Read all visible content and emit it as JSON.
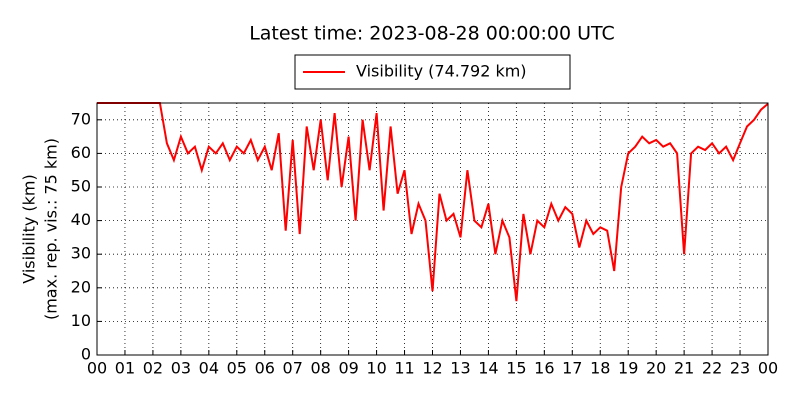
{
  "chart_data": {
    "type": "line",
    "title": "Latest time: 2023-08-28 00:00:00 UTC",
    "ylabel": [
      "Visibility (km)",
      "(max. rep. vis.: 75 km)"
    ],
    "x": [
      0,
      0.25,
      0.5,
      0.75,
      1,
      1.25,
      1.5,
      1.75,
      2,
      2.25,
      2.5,
      2.75,
      3,
      3.25,
      3.5,
      3.75,
      4,
      4.25,
      4.5,
      4.75,
      5,
      5.25,
      5.5,
      5.75,
      6,
      6.25,
      6.5,
      6.75,
      7,
      7.25,
      7.5,
      7.75,
      8,
      8.25,
      8.5,
      8.75,
      9,
      9.25,
      9.5,
      9.75,
      10,
      10.25,
      10.5,
      10.75,
      11,
      11.25,
      11.5,
      11.75,
      12,
      12.25,
      12.5,
      12.75,
      13,
      13.25,
      13.5,
      13.75,
      14,
      14.25,
      14.5,
      14.75,
      15,
      15.25,
      15.5,
      15.75,
      16,
      16.25,
      16.5,
      16.75,
      17,
      17.25,
      17.5,
      17.75,
      18,
      18.25,
      18.5,
      18.75,
      19,
      19.25,
      19.5,
      19.75,
      20,
      20.25,
      20.5,
      20.75,
      21,
      21.25,
      21.5,
      21.75,
      22,
      22.25,
      22.5,
      22.75,
      23,
      23.25,
      23.5,
      23.75,
      24
    ],
    "series": [
      {
        "name": "Visibility (74.792 km)",
        "color": "#ff0000",
        "values": [
          75,
          75,
          75,
          75,
          75,
          75,
          75,
          75,
          75,
          75,
          63,
          58,
          65,
          60,
          62,
          55,
          62,
          60,
          63,
          58,
          62,
          60,
          64,
          58,
          62,
          55,
          66,
          37,
          64,
          36,
          68,
          55,
          70,
          52,
          72,
          50,
          65,
          40,
          70,
          55,
          72,
          43,
          68,
          48,
          55,
          36,
          45,
          40,
          19,
          48,
          40,
          42,
          35,
          55,
          40,
          38,
          45,
          30,
          40,
          35,
          16,
          42,
          30,
          40,
          38,
          45,
          40,
          44,
          42,
          32,
          40,
          36,
          38,
          37,
          25,
          50,
          60,
          62,
          65,
          63,
          64,
          62,
          63,
          60,
          30,
          60,
          62,
          61,
          63,
          60,
          62,
          58,
          63,
          68,
          70,
          73,
          74.792
        ]
      }
    ],
    "xlim": [
      0,
      24
    ],
    "xticks": [
      {
        "value": 0,
        "label": "00"
      },
      {
        "value": 1,
        "label": "01"
      },
      {
        "value": 2,
        "label": "02"
      },
      {
        "value": 3,
        "label": "03"
      },
      {
        "value": 4,
        "label": "04"
      },
      {
        "value": 5,
        "label": "05"
      },
      {
        "value": 6,
        "label": "06"
      },
      {
        "value": 7,
        "label": "07"
      },
      {
        "value": 8,
        "label": "08"
      },
      {
        "value": 9,
        "label": "09"
      },
      {
        "value": 10,
        "label": "10"
      },
      {
        "value": 11,
        "label": "11"
      },
      {
        "value": 12,
        "label": "12"
      },
      {
        "value": 13,
        "label": "13"
      },
      {
        "value": 14,
        "label": "14"
      },
      {
        "value": 15,
        "label": "15"
      },
      {
        "value": 16,
        "label": "16"
      },
      {
        "value": 17,
        "label": "17"
      },
      {
        "value": 18,
        "label": "18"
      },
      {
        "value": 19,
        "label": "19"
      },
      {
        "value": 20,
        "label": "20"
      },
      {
        "value": 21,
        "label": "21"
      },
      {
        "value": 22,
        "label": "22"
      },
      {
        "value": 23,
        "label": "23"
      },
      {
        "value": 24,
        "label": "00"
      }
    ],
    "ylim": [
      0,
      75
    ],
    "yticks": [
      0,
      10,
      20,
      30,
      40,
      50,
      60,
      70
    ],
    "grid": true
  }
}
